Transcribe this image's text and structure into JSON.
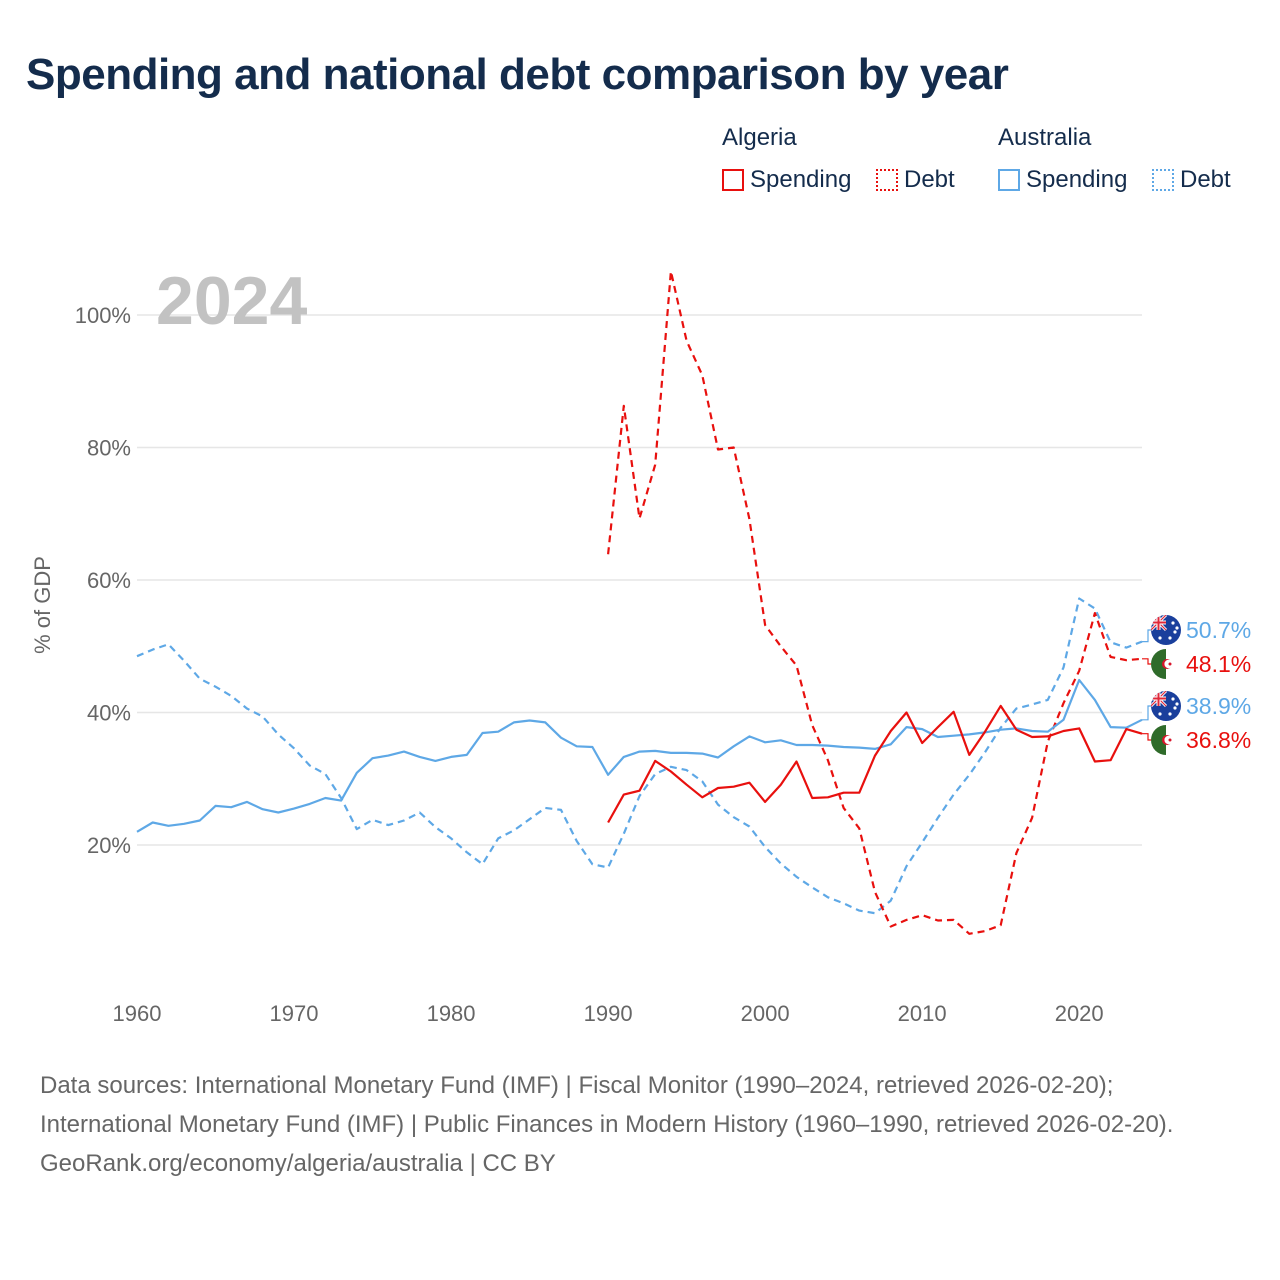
{
  "title": "Spending and national debt comparison by year",
  "year_label": "2024",
  "colors": {
    "algeria": "#e8100e",
    "australia": "#5ea8e6",
    "grid": "#e6e6e6",
    "text": "#142c4c",
    "muted": "#666666"
  },
  "legend": {
    "groups": [
      {
        "country": "Algeria",
        "spending": "Spending",
        "debt": "Debt",
        "color": "#e8100e"
      },
      {
        "country": "Australia",
        "spending": "Spending",
        "debt": "Debt",
        "color": "#5ea8e6"
      }
    ]
  },
  "footer": {
    "sources": "Data sources: International Monetary Fund (IMF) | Fiscal Monitor (1990–2024, retrieved 2026-02-20); International Monetary Fund (IMF) | Public Finances in Modern History (1960–1990, retrieved 2026-02-20).",
    "credit": "GeoRank.org/economy/algeria/australia | CC BY"
  },
  "chart_data": {
    "type": "line",
    "title": "Spending and national debt comparison by year",
    "xlabel": "",
    "ylabel": "% of GDP",
    "xlim": [
      1960,
      2024
    ],
    "ylim": [
      0,
      105
    ],
    "x_ticks": [
      1960,
      1970,
      1980,
      1990,
      2000,
      2010,
      2020
    ],
    "y_ticks": [
      20,
      40,
      60,
      80,
      100
    ],
    "y_tick_labels": [
      "20%",
      "40%",
      "60%",
      "80%",
      "100%"
    ],
    "series": [
      {
        "name": "Australia Debt",
        "country": "Australia",
        "measure": "Debt",
        "style": "dashed",
        "color": "#5ea8e6",
        "x": [
          1960,
          1961,
          1962,
          1963,
          1964,
          1965,
          1966,
          1967,
          1968,
          1969,
          1970,
          1971,
          1972,
          1973,
          1974,
          1975,
          1976,
          1977,
          1978,
          1979,
          1980,
          1981,
          1982,
          1983,
          1984,
          1985,
          1986,
          1987,
          1988,
          1989,
          1990,
          1991,
          1992,
          1993,
          1994,
          1995,
          1996,
          1997,
          1998,
          1999,
          2000,
          2001,
          2002,
          2003,
          2004,
          2005,
          2006,
          2007,
          2008,
          2009,
          2010,
          2011,
          2012,
          2013,
          2014,
          2015,
          2016,
          2017,
          2018,
          2019,
          2020,
          2021,
          2022,
          2023,
          2024
        ],
        "values": [
          48.5,
          49.5,
          50.3,
          47.8,
          45.1,
          43.9,
          42.5,
          40.6,
          39.4,
          36.7,
          34.6,
          32.0,
          30.7,
          27.1,
          22.4,
          23.8,
          23.0,
          23.7,
          24.9,
          22.7,
          21.0,
          18.9,
          17.1,
          21.0,
          22.2,
          23.9,
          25.6,
          25.3,
          20.6,
          17.1,
          16.6,
          21.7,
          27.4,
          30.7,
          31.8,
          31.3,
          29.6,
          26.1,
          24.2,
          22.8,
          19.7,
          17.2,
          15.2,
          13.6,
          12.1,
          11.2,
          10.1,
          9.7,
          11.6,
          16.8,
          20.4,
          24.1,
          27.6,
          30.6,
          34.0,
          37.7,
          40.6,
          41.2,
          41.9,
          46.8,
          57.2,
          55.7,
          50.6,
          49.8,
          50.7
        ],
        "end_label": "50.7%"
      },
      {
        "name": "Algeria Debt",
        "country": "Algeria",
        "measure": "Debt",
        "style": "dashed",
        "color": "#e8100e",
        "x": [
          1990,
          1991,
          1992,
          1993,
          1994,
          1995,
          1996,
          1997,
          1998,
          1999,
          2000,
          2001,
          2002,
          2003,
          2004,
          2005,
          2006,
          2007,
          2008,
          2009,
          2010,
          2011,
          2012,
          2013,
          2014,
          2015,
          2016,
          2017,
          2018,
          2019,
          2020,
          2021,
          2022,
          2023,
          2024
        ],
        "values": [
          63.9,
          86.3,
          69.3,
          77.4,
          106.6,
          96.1,
          90.9,
          79.7,
          80.0,
          69.2,
          53.2,
          50.0,
          47.1,
          38.1,
          32.8,
          25.6,
          22.5,
          12.9,
          7.7,
          8.7,
          9.4,
          8.6,
          8.7,
          6.6,
          7.0,
          7.9,
          18.8,
          24.1,
          35.6,
          41.4,
          46.3,
          55.0,
          48.4,
          47.9,
          48.1
        ],
        "end_label": "48.1%"
      },
      {
        "name": "Australia Spending",
        "country": "Australia",
        "measure": "Spending",
        "style": "solid",
        "color": "#5ea8e6",
        "x": [
          1960,
          1961,
          1962,
          1963,
          1964,
          1965,
          1966,
          1967,
          1968,
          1969,
          1970,
          1971,
          1972,
          1973,
          1974,
          1975,
          1976,
          1977,
          1978,
          1979,
          1980,
          1981,
          1982,
          1983,
          1984,
          1985,
          1986,
          1987,
          1988,
          1989,
          1990,
          1991,
          1992,
          1993,
          1994,
          1995,
          1996,
          1997,
          1998,
          1999,
          2000,
          2001,
          2002,
          2003,
          2004,
          2005,
          2006,
          2007,
          2008,
          2009,
          2010,
          2011,
          2012,
          2013,
          2014,
          2015,
          2016,
          2017,
          2018,
          2019,
          2020,
          2021,
          2022,
          2023,
          2024
        ],
        "values": [
          22.0,
          23.4,
          22.9,
          23.2,
          23.7,
          25.9,
          25.7,
          26.5,
          25.4,
          24.9,
          25.5,
          26.2,
          27.1,
          26.7,
          30.9,
          33.1,
          33.5,
          34.1,
          33.3,
          32.7,
          33.3,
          33.6,
          36.9,
          37.1,
          38.5,
          38.8,
          38.5,
          36.2,
          34.9,
          34.8,
          30.6,
          33.3,
          34.1,
          34.2,
          33.9,
          33.9,
          33.8,
          33.2,
          34.9,
          36.4,
          35.5,
          35.8,
          35.1,
          35.1,
          35.0,
          34.8,
          34.7,
          34.5,
          35.2,
          37.8,
          37.5,
          36.3,
          36.5,
          36.7,
          37.0,
          37.4,
          37.6,
          37.2,
          37.1,
          38.9,
          44.9,
          41.9,
          37.8,
          37.7,
          38.9
        ],
        "end_label": "38.9%"
      },
      {
        "name": "Algeria Spending",
        "country": "Algeria",
        "measure": "Spending",
        "style": "solid",
        "color": "#e8100e",
        "x": [
          1990,
          1991,
          1992,
          1993,
          1994,
          1995,
          1996,
          1997,
          1998,
          1999,
          2000,
          2001,
          2002,
          2003,
          2004,
          2005,
          2006,
          2007,
          2008,
          2009,
          2010,
          2011,
          2012,
          2013,
          2014,
          2015,
          2016,
          2017,
          2018,
          2019,
          2020,
          2021,
          2022,
          2023,
          2024
        ],
        "values": [
          23.4,
          27.6,
          28.2,
          32.7,
          31.1,
          29.1,
          27.2,
          28.6,
          28.8,
          29.4,
          26.5,
          29.1,
          32.6,
          27.1,
          27.2,
          27.9,
          27.9,
          33.5,
          37.2,
          40.0,
          35.4,
          37.8,
          40.1,
          33.6,
          37.1,
          41.0,
          37.4,
          36.3,
          36.4,
          37.2,
          37.6,
          32.6,
          32.8,
          37.5,
          36.8
        ],
        "end_label": "36.8%"
      }
    ]
  }
}
